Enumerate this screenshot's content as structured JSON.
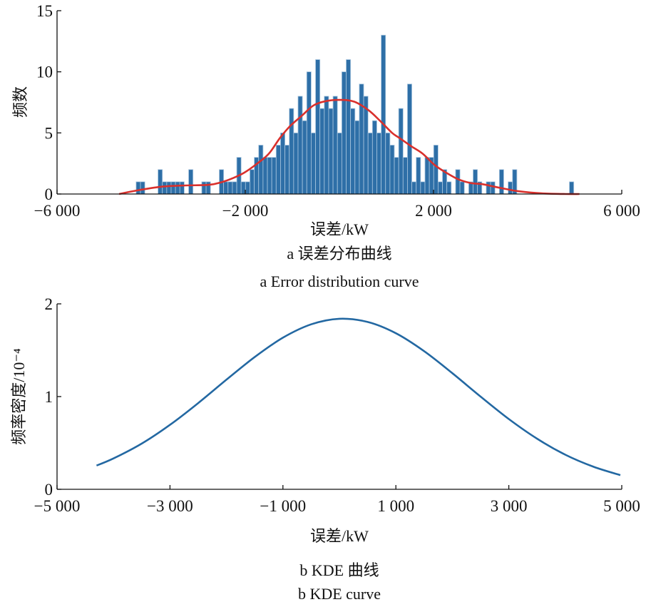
{
  "chart_data": [
    {
      "type": "bar",
      "subtype": "histogram_with_fit",
      "xlabel": "误差/kW",
      "ylabel": "频数",
      "xlim": [
        -6000,
        6000
      ],
      "ylim": [
        0,
        15
      ],
      "xticks": [
        -6000,
        -2000,
        2000,
        6000
      ],
      "xtick_labels": [
        "−6 000",
        "−2 000",
        "2 000",
        "6 000"
      ],
      "yticks": [
        0,
        5,
        10,
        15
      ],
      "ytick_labels": [
        "0",
        "5",
        "10",
        "15"
      ],
      "caption_cn": "a  误差分布曲线",
      "caption_en": "a  Error distribution curve",
      "bin_start": -4320,
      "bin_width": 93,
      "counts": [
        1,
        1,
        0,
        0,
        0,
        2,
        1,
        1,
        1,
        1,
        1,
        0,
        2,
        0,
        0,
        1,
        1,
        0,
        0,
        2,
        1,
        1,
        1,
        3,
        1,
        1,
        2,
        3,
        4,
        3,
        3,
        3,
        4,
        5,
        4,
        7,
        5,
        8,
        6,
        10,
        5,
        11,
        7,
        8,
        7,
        8,
        5,
        10,
        11,
        7,
        6,
        9,
        8,
        5,
        6,
        5,
        13,
        5,
        4,
        3,
        7,
        3,
        9,
        1,
        3,
        1,
        3,
        3,
        4,
        1,
        2,
        1,
        0,
        2,
        1,
        0,
        1,
        2,
        1,
        0,
        1,
        1,
        0,
        2,
        0,
        1,
        2,
        0,
        0,
        0,
        0,
        0,
        0,
        0,
        0,
        0,
        0,
        0,
        0,
        1
      ],
      "fit_curve": {
        "x": [
          -4680,
          -4290,
          -3770,
          -3270,
          -2770,
          -2520,
          -2260,
          -2020,
          -1760,
          -1500,
          -1260,
          -1050,
          -800,
          -550,
          -290,
          15,
          320,
          620,
          860,
          1120,
          1270,
          1530,
          1770,
          2030,
          2290,
          2530,
          2790,
          3050,
          3290,
          3550,
          3800,
          4300,
          4800,
          5100
        ],
        "y": [
          0.0,
          0.3,
          0.6,
          0.7,
          0.75,
          0.95,
          1.3,
          1.75,
          2.45,
          3.3,
          4.6,
          5.55,
          6.4,
          7.25,
          7.6,
          7.7,
          7.55,
          6.85,
          6.0,
          5.0,
          4.6,
          3.9,
          3.3,
          2.35,
          1.7,
          1.2,
          0.9,
          0.8,
          0.6,
          0.4,
          0.23,
          0.05,
          0.0,
          0.0
        ]
      },
      "colors": {
        "bar": "#2e6fa7",
        "bar_edge": "#a9c6df",
        "fit": "#d9302c"
      }
    },
    {
      "type": "line",
      "xlabel": "误差/kW",
      "ylabel": "频率密度/10⁻⁴",
      "xlim": [
        -5000,
        5000
      ],
      "ylim": [
        0,
        2
      ],
      "xticks": [
        -5000,
        -3000,
        -1000,
        1000,
        3000,
        5000
      ],
      "xtick_labels": [
        "−5 000",
        "−3 000",
        "−1 000",
        "1 000",
        "3 000",
        "5 000"
      ],
      "yticks": [
        0,
        1,
        2
      ],
      "ytick_labels": [
        "0",
        "1",
        "2"
      ],
      "caption_cn": "b  KDE 曲线",
      "caption_en": "b  KDE curve",
      "series": [
        {
          "name": "KDE",
          "x": [
            -4300,
            -4000,
            -3500,
            -3000,
            -2500,
            -2000,
            -1500,
            -1000,
            -500,
            0,
            500,
            1000,
            1500,
            2000,
            2500,
            3000,
            3500,
            4000,
            4500,
            4975
          ],
          "y": [
            0.256,
            0.333,
            0.493,
            0.695,
            0.93,
            1.182,
            1.426,
            1.635,
            1.779,
            1.839,
            1.805,
            1.683,
            1.49,
            1.252,
            1.0,
            0.758,
            0.546,
            0.373,
            0.243,
            0.153
          ]
        }
      ],
      "colors": {
        "line": "#2368a2"
      }
    }
  ]
}
